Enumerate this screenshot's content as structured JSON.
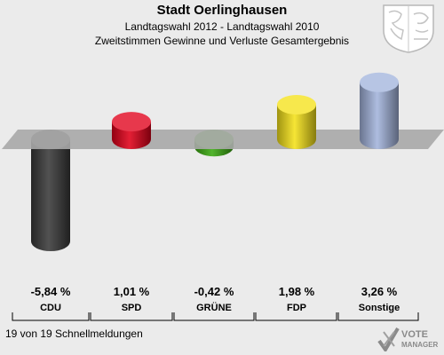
{
  "header": {
    "title": "Stadt Oerlinghausen",
    "subtitle1": "Landtagswahl 2012 - Landtagswahl 2010",
    "subtitle2": "Zweitstimmen Gewinne und Verluste Gesamtergebnis"
  },
  "footer": {
    "text": "19 von 19 Schnellmeldungen"
  },
  "logo": {
    "line1": "VOTE",
    "line2": "MANAGER"
  },
  "chart_data": {
    "type": "bar",
    "title": "Stadt Oerlinghausen",
    "categories": [
      "CDU",
      "SPD",
      "GRÜNE",
      "FDP",
      "Sonstige"
    ],
    "values": [
      -5.84,
      1.01,
      -0.42,
      1.98,
      3.26
    ],
    "value_labels": [
      "-5,84 %",
      "1,01 %",
      "-0,42 %",
      "1,98 %",
      "3,26 %"
    ],
    "colors": [
      "#3a3a3a",
      "#e0001a",
      "#3aaa10",
      "#f5e21a",
      "#a3b4dc"
    ],
    "xlabel": "",
    "ylabel": "",
    "grid": false,
    "legend": "none"
  }
}
